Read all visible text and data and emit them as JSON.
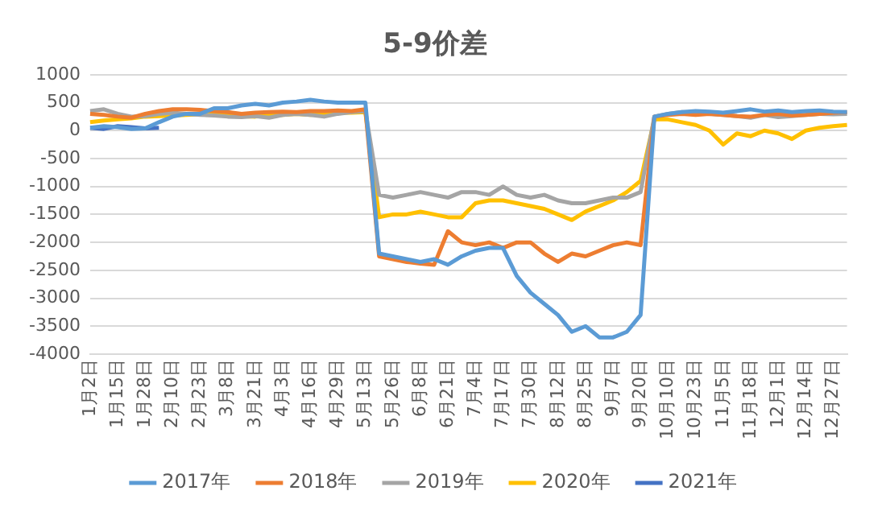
{
  "chart_data": {
    "type": "line",
    "title": "5-9价差",
    "categories": [
      "1月2日",
      null,
      "1月15日",
      null,
      "1月28日",
      null,
      "2月10日",
      null,
      "2月23日",
      null,
      "3月8日",
      null,
      "3月21日",
      null,
      "4月3日",
      null,
      "4月16日",
      null,
      "4月29日",
      null,
      "5月13日",
      null,
      "5月26日",
      null,
      "6月8日",
      null,
      "6月21日",
      null,
      "7月4日",
      null,
      "7月17日",
      null,
      "7月30日",
      null,
      "8月12日",
      null,
      "8月25日",
      null,
      "9月7日",
      null,
      "9月20日",
      null,
      "10月10日",
      null,
      "10月23日",
      null,
      "11月5日",
      null,
      "11月18日",
      null,
      "12月1日",
      null,
      "12月14日",
      null,
      "12月27日",
      null
    ],
    "series": [
      {
        "name": "2017年",
        "color": "#5b9bd5",
        "values": [
          50,
          80,
          60,
          30,
          40,
          150,
          250,
          300,
          300,
          400,
          400,
          450,
          480,
          450,
          500,
          520,
          550,
          520,
          500,
          500,
          500,
          -2200,
          -2250,
          -2300,
          -2350,
          -2300,
          -2400,
          -2250,
          -2150,
          -2100,
          -2100,
          -2600,
          -2900,
          -3100,
          -3300,
          -3600,
          -3500,
          -3700,
          -3700,
          -3600,
          -3300,
          250,
          300,
          330,
          350,
          340,
          320,
          350,
          380,
          340,
          360,
          330,
          350,
          360,
          340,
          330
        ]
      },
      {
        "name": "2018年",
        "color": "#ed7d31",
        "values": [
          300,
          280,
          250,
          230,
          300,
          350,
          380,
          380,
          370,
          350,
          330,
          300,
          320,
          330,
          340,
          330,
          350,
          350,
          360,
          350,
          380,
          -2250,
          -2300,
          -2350,
          -2380,
          -2400,
          -1800,
          -2000,
          -2050,
          -2000,
          -2100,
          -2000,
          -2000,
          -2200,
          -2350,
          -2200,
          -2250,
          -2150,
          -2050,
          -2000,
          -2050,
          250,
          280,
          300,
          280,
          300,
          280,
          260,
          250,
          280,
          300,
          270,
          280,
          300,
          320,
          330
        ]
      },
      {
        "name": "2019年",
        "color": "#a5a5a5",
        "values": [
          350,
          380,
          300,
          250,
          260,
          300,
          320,
          300,
          280,
          270,
          250,
          240,
          260,
          230,
          280,
          300,
          280,
          250,
          300,
          330,
          350,
          -1150,
          -1200,
          -1150,
          -1100,
          -1150,
          -1200,
          -1100,
          -1100,
          -1150,
          -1000,
          -1150,
          -1200,
          -1150,
          -1250,
          -1300,
          -1300,
          -1250,
          -1200,
          -1200,
          -1100,
          250,
          300,
          330,
          320,
          300,
          280,
          260,
          230,
          280,
          240,
          260,
          280,
          300,
          290,
          300
        ]
      },
      {
        "name": "2020年",
        "color": "#ffc000",
        "values": [
          150,
          180,
          200,
          220,
          250,
          260,
          270,
          280,
          290,
          300,
          280,
          260,
          250,
          270,
          280,
          300,
          280,
          300,
          320,
          320,
          330,
          -1550,
          -1500,
          -1500,
          -1450,
          -1500,
          -1550,
          -1550,
          -1300,
          -1250,
          -1250,
          -1300,
          -1350,
          -1400,
          -1500,
          -1600,
          -1450,
          -1350,
          -1250,
          -1100,
          -900,
          200,
          200,
          150,
          100,
          0,
          -250,
          -50,
          -100,
          0,
          -50,
          -150,
          0,
          50,
          80,
          100
        ]
      },
      {
        "name": "2021年",
        "color": "#4472c4",
        "values": [
          50,
          30,
          80,
          60,
          40,
          50,
          null,
          null,
          null,
          null,
          null,
          null,
          null,
          null,
          null,
          null,
          null,
          null,
          null,
          null,
          null,
          null,
          null,
          null,
          null,
          null,
          null,
          null,
          null,
          null,
          null,
          null,
          null,
          null,
          null,
          null,
          null,
          null,
          null,
          null,
          null,
          null,
          null,
          null,
          null,
          null,
          null,
          null,
          null,
          null,
          null,
          null,
          null,
          null,
          null,
          null
        ]
      }
    ],
    "ylim": [
      -4000,
      1000
    ],
    "yticks": [
      -4000,
      -3500,
      -3000,
      -2500,
      -2000,
      -1500,
      -1000,
      -500,
      0,
      500,
      1000
    ],
    "grid": "y",
    "legend": "bottom"
  }
}
